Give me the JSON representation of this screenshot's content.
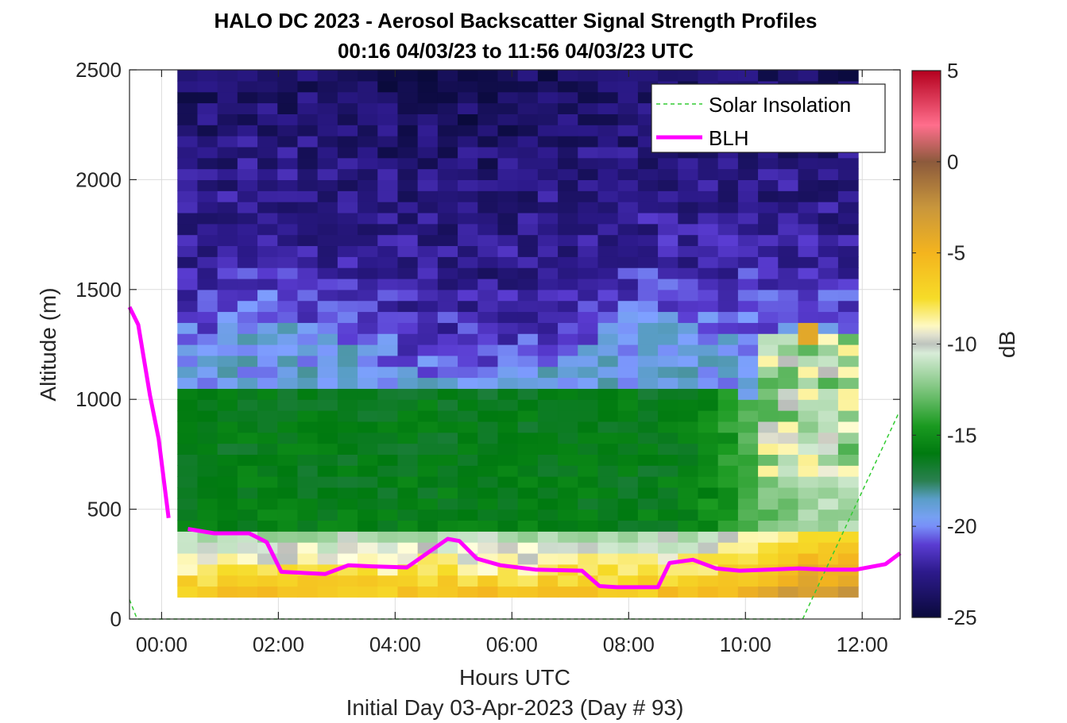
{
  "chart_data": {
    "type": "heatmap",
    "title": "HALO DC 2023 - Aerosol Backscatter Signal Strength Profiles",
    "subtitle": "00:16 04/03/23 to 11:56 04/03/23  UTC",
    "xlabel": "Hours UTC",
    "xlabel2": "Initial Day 03-Apr-2023 (Day # 93)",
    "ylabel": "Altitude (m)",
    "xlim": [
      -0.55,
      12.65
    ],
    "ylim": [
      0,
      2500
    ],
    "x_ticks": [
      {
        "value": 0,
        "label": "00:00"
      },
      {
        "value": 2,
        "label": "02:00"
      },
      {
        "value": 4,
        "label": "04:00"
      },
      {
        "value": 6,
        "label": "06:00"
      },
      {
        "value": 8,
        "label": "08:00"
      },
      {
        "value": 10,
        "label": "10:00"
      },
      {
        "value": 12,
        "label": "12:00"
      }
    ],
    "y_ticks": [
      {
        "value": 0,
        "label": "0"
      },
      {
        "value": 500,
        "label": "500"
      },
      {
        "value": 1000,
        "label": "1000"
      },
      {
        "value": 1500,
        "label": "1500"
      },
      {
        "value": 2000,
        "label": "2000"
      },
      {
        "value": 2500,
        "label": "2500"
      }
    ],
    "grid": true,
    "heatmap": {
      "x_start": 0.27,
      "x_end": 11.93,
      "columns": 34,
      "y_start": 100,
      "y_end": 2500,
      "rows": 48,
      "units": "dB",
      "value_range": [
        -25,
        5
      ]
    },
    "colorbar": {
      "label": "dB",
      "range": [
        -25,
        5
      ],
      "ticks": [
        {
          "value": 5,
          "label": "5"
        },
        {
          "value": 0,
          "label": "0"
        },
        {
          "value": -5,
          "label": "-5"
        },
        {
          "value": -10,
          "label": "-10"
        },
        {
          "value": -15,
          "label": "-15"
        },
        {
          "value": -20,
          "label": "-20"
        },
        {
          "value": -25,
          "label": "-25"
        }
      ],
      "colors": [
        [
          -25,
          "#0a0a3c"
        ],
        [
          -22.5,
          "#2d1a8c"
        ],
        [
          -21,
          "#5a3cd2"
        ],
        [
          -19.8,
          "#7ea0ff"
        ],
        [
          -18.5,
          "#5a9ec8"
        ],
        [
          -17.5,
          "#2a8050"
        ],
        [
          -16,
          "#007a10"
        ],
        [
          -14.5,
          "#1a9a20"
        ],
        [
          -12.5,
          "#7cc47c"
        ],
        [
          -10.5,
          "#d8ecd8"
        ],
        [
          -9.8,
          "#b4b4b4"
        ],
        [
          -9.3,
          "#ffffe0"
        ],
        [
          -7.5,
          "#f6dc28"
        ],
        [
          -5,
          "#f4b41e"
        ],
        [
          -2.5,
          "#c8963c"
        ],
        [
          0,
          "#8c5a3c"
        ],
        [
          2,
          "#ff6e8c"
        ],
        [
          5,
          "#b4001e"
        ]
      ]
    },
    "series": [
      {
        "name": "Solar Insolation",
        "style": "dashed",
        "color": "#33cc33",
        "x": [
          -0.55,
          -0.42,
          10.98,
          12.62
        ],
        "y": [
          88,
          0,
          0,
          935
        ]
      },
      {
        "name": "BLH",
        "style": "solid",
        "color": "#ff00ff",
        "segments": [
          {
            "x": [
              -0.55,
              -0.4,
              -0.2,
              -0.05,
              0.12
            ],
            "y": [
              1420,
              1340,
              1020,
              820,
              460
            ]
          },
          {
            "x": [
              0.45,
              0.9,
              1.5,
              1.8,
              2.05,
              2.8,
              3.2,
              3.6,
              4.2,
              4.9,
              5.1,
              5.4,
              5.8,
              6.4,
              7.2,
              7.5,
              7.8,
              8.5,
              8.7,
              9.1,
              9.5,
              9.9,
              10.4,
              10.9,
              11.4,
              11.9,
              12.4,
              12.65
            ],
            "y": [
              410,
              390,
              390,
              350,
              215,
              205,
              245,
              240,
              235,
              365,
              355,
              275,
              245,
              225,
              220,
              150,
              145,
              145,
              255,
              270,
              230,
              220,
              225,
              230,
              225,
              225,
              250,
              300
            ]
          }
        ]
      }
    ],
    "legend": {
      "position": "top-right",
      "entries": [
        "Solar Insolation",
        "BLH"
      ]
    }
  }
}
